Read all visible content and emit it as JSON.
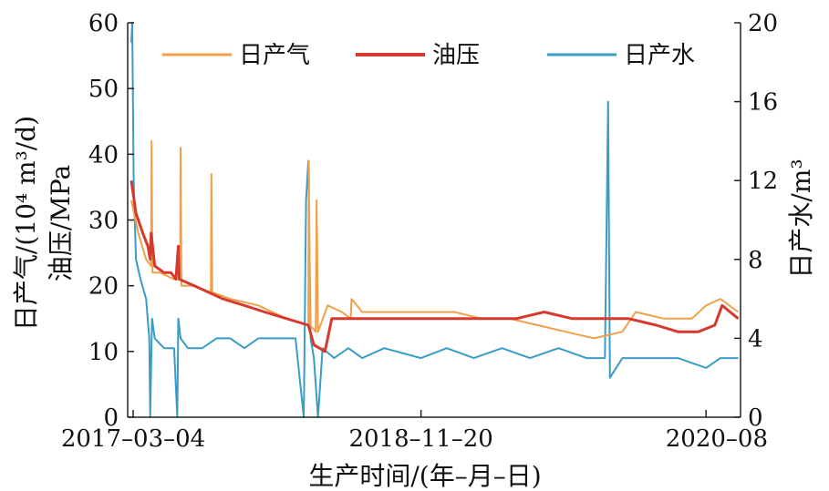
{
  "chart_data": {
    "type": "line",
    "title": "",
    "xlabel": "生产时间/(年–月–日)",
    "x_tick_labels": [
      "2017–03–04",
      "2018–11–20",
      "2020–08"
    ],
    "x_tick_dates": [
      "2017-03-04",
      "2018-11-20",
      "2020-08-01"
    ],
    "xlim": [
      "2017-02-20",
      "2020-10-15"
    ],
    "ylabel_left_line1": "日产气/(10⁴ m³/d)",
    "ylabel_left_line2": "油压/MPa",
    "ylim_left": [
      0,
      60
    ],
    "yticks_left": [
      0,
      10,
      20,
      30,
      40,
      50,
      60
    ],
    "ylabel_right": "日产水/m³",
    "ylim_right": [
      0,
      20
    ],
    "yticks_right": [
      0,
      4,
      8,
      12,
      16,
      20
    ],
    "grid": false,
    "legend_position": "top",
    "series": [
      {
        "name": "日产气",
        "axis": "left",
        "color": "#f0a04a",
        "x": [
          "2017-02-28",
          "2017-03-15",
          "2017-04-01",
          "2017-04-12",
          "2017-04-13",
          "2017-04-15",
          "2017-05-01",
          "2017-06-01",
          "2017-06-14",
          "2017-06-15",
          "2017-06-17",
          "2017-07-10",
          "2017-08-20",
          "2017-08-21",
          "2017-08-23",
          "2017-10-01",
          "2017-12-01",
          "2018-02-01",
          "2018-03-20",
          "2018-03-21",
          "2018-03-24",
          "2018-04-05",
          "2018-04-07",
          "2018-04-10",
          "2018-05-01",
          "2018-06-01",
          "2018-06-20",
          "2018-06-22",
          "2018-07-15",
          "2018-09-01",
          "2018-11-20",
          "2019-02-01",
          "2019-04-01",
          "2019-06-01",
          "2019-08-01",
          "2019-10-01",
          "2019-12-01",
          "2020-02-01",
          "2020-03-01",
          "2020-05-01",
          "2020-07-01",
          "2020-08-01",
          "2020-09-01",
          "2020-10-10"
        ],
        "values": [
          33,
          28,
          24,
          23,
          42,
          22,
          22,
          21,
          21,
          41,
          20,
          20,
          19,
          37,
          19,
          18,
          17,
          15,
          14,
          39,
          14,
          13,
          33,
          13,
          17,
          16,
          15,
          18,
          16,
          16,
          16,
          16,
          15,
          15,
          14,
          13,
          12,
          13,
          16,
          15,
          15,
          17,
          18,
          16
        ]
      },
      {
        "name": "油压",
        "axis": "left",
        "color": "#d63a2e",
        "x": [
          "2017-02-28",
          "2017-03-10",
          "2017-03-25",
          "2017-04-05",
          "2017-04-10",
          "2017-04-12",
          "2017-04-20",
          "2017-05-10",
          "2017-05-25",
          "2017-06-05",
          "2017-06-10",
          "2017-06-12",
          "2017-07-15",
          "2017-08-15",
          "2017-09-15",
          "2017-11-01",
          "2017-12-15",
          "2018-02-01",
          "2018-03-20",
          "2018-04-01",
          "2018-04-25",
          "2018-05-10",
          "2018-07-01",
          "2018-09-01",
          "2018-11-20",
          "2019-02-01",
          "2019-04-15",
          "2019-06-15",
          "2019-08-15",
          "2019-10-15",
          "2019-12-15",
          "2020-02-15",
          "2020-04-15",
          "2020-06-01",
          "2020-07-15",
          "2020-08-20",
          "2020-09-05",
          "2020-10-10"
        ],
        "values": [
          36,
          31,
          28,
          26,
          24,
          28,
          23,
          22,
          22,
          21,
          26,
          21,
          20,
          19,
          18,
          17,
          16,
          15,
          14,
          11,
          10,
          15,
          15,
          15,
          15,
          15,
          15,
          15,
          16,
          15,
          15,
          15,
          14,
          13,
          13,
          14,
          17,
          15
        ]
      },
      {
        "name": "日产水",
        "axis": "right",
        "color": "#3a9cc6",
        "x": [
          "2017-02-28",
          "2017-03-02",
          "2017-03-05",
          "2017-03-10",
          "2017-03-20",
          "2017-04-01",
          "2017-04-08",
          "2017-04-10",
          "2017-04-14",
          "2017-04-20",
          "2017-05-10",
          "2017-06-01",
          "2017-06-08",
          "2017-06-10",
          "2017-06-15",
          "2017-07-01",
          "2017-08-01",
          "2017-09-01",
          "2017-10-01",
          "2017-11-01",
          "2017-12-01",
          "2018-01-15",
          "2018-02-20",
          "2018-03-10",
          "2018-03-15",
          "2018-03-20",
          "2018-03-25",
          "2018-04-01",
          "2018-04-10",
          "2018-04-20",
          "2018-05-15",
          "2018-06-15",
          "2018-07-15",
          "2018-09-01",
          "2018-11-20",
          "2019-01-15",
          "2019-03-15",
          "2019-05-15",
          "2019-07-15",
          "2019-09-15",
          "2019-11-15",
          "2019-12-25",
          "2020-01-01",
          "2020-01-05",
          "2020-02-01",
          "2020-04-01",
          "2020-06-01",
          "2020-08-01",
          "2020-09-01",
          "2020-10-10"
        ],
        "values": [
          19,
          20,
          12,
          8,
          7,
          6,
          4,
          0,
          5,
          4,
          3.5,
          3.5,
          0,
          5,
          4,
          3.5,
          3.5,
          4,
          4,
          3.5,
          4,
          4,
          4,
          0,
          11,
          13,
          4,
          3,
          0,
          3.5,
          3,
          3.5,
          3,
          3.5,
          3,
          3.5,
          3,
          3.5,
          3,
          3.5,
          3,
          3,
          16,
          2,
          3,
          3,
          3,
          2.5,
          3,
          3
        ]
      }
    ]
  }
}
